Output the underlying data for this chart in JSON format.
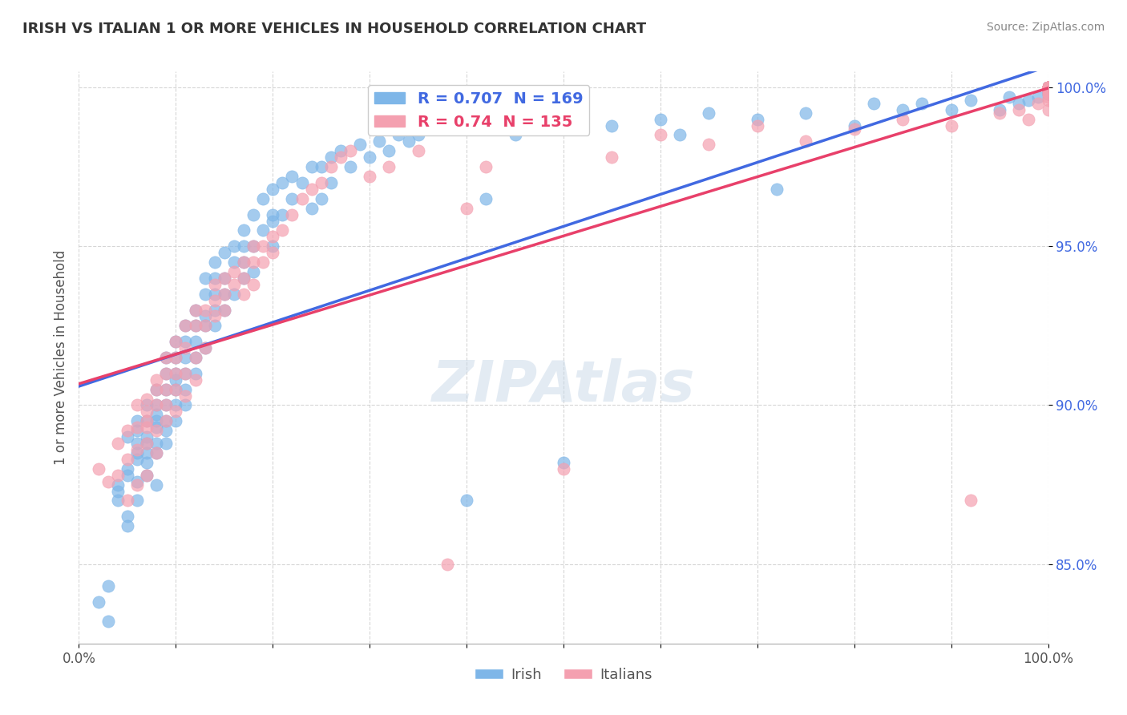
{
  "title": "IRISH VS ITALIAN 1 OR MORE VEHICLES IN HOUSEHOLD CORRELATION CHART",
  "source": "Source: ZipAtlas.com",
  "xlabel": "",
  "ylabel": "1 or more Vehicles in Household",
  "xlim": [
    0.0,
    1.0
  ],
  "ylim": [
    0.825,
    1.005
  ],
  "yticks": [
    0.85,
    0.9,
    0.95,
    1.0
  ],
  "ytick_labels": [
    "85.0%",
    "90.0%",
    "95.0%",
    "100.0%"
  ],
  "xtick_labels": [
    "0.0%",
    "",
    "",
    "",
    "",
    "",
    "",
    "",
    "",
    "",
    "100.0%"
  ],
  "watermark": "ZIPAtlas",
  "irish_color": "#7EB6E8",
  "italian_color": "#F4A0B0",
  "irish_line_color": "#4169E1",
  "italian_line_color": "#E8406A",
  "irish_R": 0.707,
  "irish_N": 169,
  "italian_R": 0.74,
  "italian_N": 135,
  "irish_scatter": {
    "x": [
      0.02,
      0.03,
      0.03,
      0.04,
      0.04,
      0.04,
      0.05,
      0.05,
      0.05,
      0.05,
      0.05,
      0.06,
      0.06,
      0.06,
      0.06,
      0.06,
      0.06,
      0.06,
      0.07,
      0.07,
      0.07,
      0.07,
      0.07,
      0.07,
      0.07,
      0.08,
      0.08,
      0.08,
      0.08,
      0.08,
      0.08,
      0.08,
      0.08,
      0.09,
      0.09,
      0.09,
      0.09,
      0.09,
      0.09,
      0.09,
      0.1,
      0.1,
      0.1,
      0.1,
      0.1,
      0.1,
      0.1,
      0.11,
      0.11,
      0.11,
      0.11,
      0.11,
      0.11,
      0.12,
      0.12,
      0.12,
      0.12,
      0.12,
      0.13,
      0.13,
      0.13,
      0.13,
      0.13,
      0.14,
      0.14,
      0.14,
      0.14,
      0.14,
      0.15,
      0.15,
      0.15,
      0.15,
      0.16,
      0.16,
      0.16,
      0.17,
      0.17,
      0.17,
      0.17,
      0.18,
      0.18,
      0.18,
      0.19,
      0.19,
      0.2,
      0.2,
      0.2,
      0.2,
      0.21,
      0.21,
      0.22,
      0.22,
      0.23,
      0.24,
      0.24,
      0.25,
      0.25,
      0.26,
      0.26,
      0.27,
      0.28,
      0.29,
      0.3,
      0.31,
      0.32,
      0.33,
      0.34,
      0.35,
      0.38,
      0.4,
      0.42,
      0.45,
      0.5,
      0.55,
      0.6,
      0.62,
      0.65,
      0.7,
      0.72,
      0.75,
      0.8,
      0.82,
      0.85,
      0.87,
      0.9,
      0.92,
      0.95,
      0.96,
      0.97,
      0.98,
      0.99,
      1.0,
      1.0,
      1.0,
      1.0,
      1.0,
      1.0,
      1.0,
      1.0,
      1.0,
      1.0,
      1.0,
      1.0,
      1.0,
      1.0,
      1.0,
      1.0,
      1.0,
      1.0,
      1.0,
      1.0,
      1.0,
      1.0,
      1.0,
      1.0,
      1.0,
      1.0,
      1.0,
      1.0,
      1.0,
      1.0,
      1.0,
      1.0,
      1.0,
      1.0,
      1.0,
      1.0,
      1.0,
      1.0
    ],
    "y": [
      0.838,
      0.843,
      0.832,
      0.87,
      0.873,
      0.875,
      0.88,
      0.878,
      0.865,
      0.89,
      0.862,
      0.885,
      0.892,
      0.883,
      0.87,
      0.876,
      0.888,
      0.895,
      0.89,
      0.885,
      0.888,
      0.895,
      0.882,
      0.878,
      0.9,
      0.893,
      0.888,
      0.895,
      0.9,
      0.897,
      0.905,
      0.885,
      0.875,
      0.895,
      0.9,
      0.905,
      0.91,
      0.892,
      0.888,
      0.915,
      0.9,
      0.91,
      0.915,
      0.905,
      0.895,
      0.92,
      0.908,
      0.915,
      0.91,
      0.92,
      0.925,
      0.905,
      0.9,
      0.92,
      0.925,
      0.93,
      0.91,
      0.915,
      0.925,
      0.935,
      0.918,
      0.928,
      0.94,
      0.93,
      0.935,
      0.94,
      0.925,
      0.945,
      0.935,
      0.94,
      0.948,
      0.93,
      0.945,
      0.95,
      0.935,
      0.95,
      0.94,
      0.955,
      0.945,
      0.95,
      0.96,
      0.942,
      0.955,
      0.965,
      0.958,
      0.96,
      0.95,
      0.968,
      0.96,
      0.97,
      0.965,
      0.972,
      0.97,
      0.975,
      0.962,
      0.975,
      0.965,
      0.978,
      0.97,
      0.98,
      0.975,
      0.982,
      0.978,
      0.983,
      0.98,
      0.985,
      0.983,
      0.985,
      0.988,
      0.87,
      0.965,
      0.985,
      0.882,
      0.988,
      0.99,
      0.985,
      0.992,
      0.99,
      0.968,
      0.992,
      0.988,
      0.995,
      0.993,
      0.995,
      0.993,
      0.996,
      0.993,
      0.997,
      0.995,
      0.996,
      0.997,
      0.998,
      0.998,
      0.999,
      0.999,
      0.999,
      0.999,
      1.0,
      1.0,
      1.0,
      1.0,
      1.0,
      1.0,
      1.0,
      1.0,
      1.0,
      1.0,
      1.0,
      1.0,
      1.0,
      1.0,
      1.0,
      1.0,
      1.0,
      1.0,
      1.0,
      1.0,
      1.0,
      1.0,
      1.0,
      1.0,
      1.0,
      1.0,
      1.0,
      1.0,
      1.0,
      1.0,
      1.0,
      1.0
    ]
  },
  "italian_scatter": {
    "x": [
      0.02,
      0.03,
      0.04,
      0.04,
      0.05,
      0.05,
      0.05,
      0.06,
      0.06,
      0.06,
      0.06,
      0.07,
      0.07,
      0.07,
      0.07,
      0.07,
      0.07,
      0.08,
      0.08,
      0.08,
      0.08,
      0.08,
      0.09,
      0.09,
      0.09,
      0.09,
      0.09,
      0.1,
      0.1,
      0.1,
      0.1,
      0.1,
      0.11,
      0.11,
      0.11,
      0.11,
      0.12,
      0.12,
      0.12,
      0.12,
      0.13,
      0.13,
      0.13,
      0.14,
      0.14,
      0.14,
      0.15,
      0.15,
      0.15,
      0.16,
      0.16,
      0.17,
      0.17,
      0.17,
      0.18,
      0.18,
      0.18,
      0.19,
      0.19,
      0.2,
      0.2,
      0.21,
      0.22,
      0.23,
      0.24,
      0.25,
      0.26,
      0.27,
      0.28,
      0.3,
      0.32,
      0.35,
      0.38,
      0.4,
      0.42,
      0.5,
      0.55,
      0.6,
      0.65,
      0.7,
      0.75,
      0.8,
      0.85,
      0.9,
      0.92,
      0.95,
      0.97,
      0.98,
      0.99,
      1.0,
      1.0,
      1.0,
      1.0,
      1.0,
      1.0,
      1.0,
      1.0,
      1.0,
      1.0,
      1.0,
      1.0,
      1.0,
      1.0,
      1.0,
      1.0,
      1.0,
      1.0,
      1.0,
      1.0,
      1.0,
      1.0,
      1.0,
      1.0,
      1.0,
      1.0,
      1.0,
      1.0,
      1.0,
      1.0,
      1.0,
      1.0,
      1.0,
      1.0,
      1.0,
      1.0,
      1.0,
      1.0,
      1.0,
      1.0,
      1.0,
      1.0,
      1.0,
      1.0,
      1.0,
      1.0
    ],
    "y": [
      0.88,
      0.876,
      0.878,
      0.888,
      0.87,
      0.883,
      0.892,
      0.893,
      0.886,
      0.9,
      0.875,
      0.893,
      0.898,
      0.888,
      0.895,
      0.902,
      0.878,
      0.905,
      0.892,
      0.9,
      0.908,
      0.885,
      0.905,
      0.91,
      0.9,
      0.895,
      0.915,
      0.91,
      0.92,
      0.905,
      0.898,
      0.915,
      0.918,
      0.925,
      0.91,
      0.903,
      0.925,
      0.93,
      0.915,
      0.908,
      0.93,
      0.925,
      0.918,
      0.933,
      0.928,
      0.938,
      0.935,
      0.93,
      0.94,
      0.938,
      0.942,
      0.94,
      0.945,
      0.935,
      0.945,
      0.95,
      0.938,
      0.95,
      0.945,
      0.953,
      0.948,
      0.955,
      0.96,
      0.965,
      0.968,
      0.97,
      0.975,
      0.978,
      0.98,
      0.972,
      0.975,
      0.98,
      0.85,
      0.962,
      0.975,
      0.88,
      0.978,
      0.985,
      0.982,
      0.988,
      0.983,
      0.987,
      0.99,
      0.988,
      0.87,
      0.992,
      0.993,
      0.99,
      0.995,
      0.993,
      0.996,
      0.997,
      0.998,
      0.998,
      0.999,
      0.999,
      0.999,
      1.0,
      1.0,
      1.0,
      1.0,
      1.0,
      1.0,
      1.0,
      1.0,
      1.0,
      1.0,
      1.0,
      1.0,
      1.0,
      1.0,
      1.0,
      1.0,
      1.0,
      1.0,
      1.0,
      1.0,
      1.0,
      1.0,
      1.0,
      1.0,
      1.0,
      1.0,
      1.0,
      1.0,
      1.0,
      1.0,
      1.0,
      1.0,
      1.0,
      1.0,
      1.0,
      1.0,
      1.0,
      1.0
    ]
  }
}
